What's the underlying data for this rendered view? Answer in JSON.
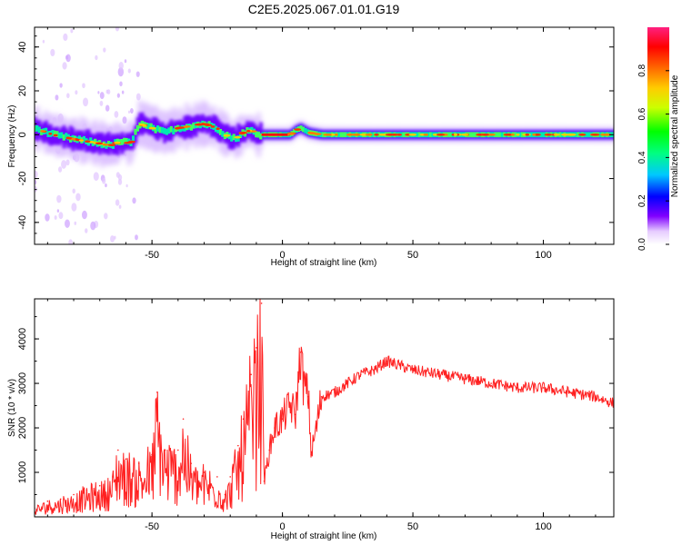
{
  "figure": {
    "title": "C2E5.2025.067.01.01.G19"
  },
  "chart_data": [
    {
      "type": "heatmap",
      "title": "C2E5.2025.067.01.01.G19",
      "xlabel": "Height of straight line (km)",
      "ylabel": "Frequency (Hz)",
      "xlim": [
        -95,
        127
      ],
      "ylim": [
        -50,
        49
      ],
      "xticks": [
        -50,
        0,
        50,
        100
      ],
      "yticks": [
        -40,
        -20,
        0,
        20,
        40
      ],
      "colorbar": {
        "label": "Normalized spectral amplitude",
        "range": [
          0,
          1
        ],
        "ticks": [
          0.0,
          0.2,
          0.4,
          0.6,
          0.8
        ],
        "colormap": [
          "#ffffff",
          "#d9b3ff",
          "#7a00ff",
          "#0000ff",
          "#00ffff",
          "#00ff00",
          "#ffff00",
          "#ff8000",
          "#ff0000",
          "#ff1493"
        ]
      },
      "ridge": {
        "description_points_x": [
          -95,
          -88,
          -80,
          -75,
          -70,
          -66,
          -62,
          -58,
          -55,
          -50,
          -45,
          -40,
          -35,
          -30,
          -25,
          -22,
          -20,
          -18,
          -15,
          -12,
          -10,
          -8,
          -5,
          0,
          3,
          5,
          7,
          10,
          15,
          20,
          30,
          50,
          80,
          127
        ],
        "description_points_y": [
          3,
          0,
          -2,
          -3,
          -4,
          -5,
          -3,
          -4,
          5,
          3,
          1,
          3,
          4,
          5,
          3,
          0,
          -1,
          -2,
          1,
          2,
          0,
          0,
          0,
          0,
          0,
          2,
          3,
          1,
          0,
          0,
          0,
          0,
          0,
          0
        ]
      },
      "grid": false,
      "legend": "colorbar-right"
    },
    {
      "type": "line",
      "xlabel": "Height of straight line (km)",
      "ylabel": "SNR (10 * v/v)",
      "xlim": [
        -95,
        127
      ],
      "ylim": [
        0,
        4900
      ],
      "xticks": [
        -50,
        0,
        50,
        100
      ],
      "yticks": [
        1000,
        2000,
        3000,
        4000
      ],
      "color": "#ff2020",
      "series": [
        {
          "x": [
            -95,
            -90,
            -85,
            -80,
            -75,
            -70,
            -65,
            -63,
            -60,
            -55,
            -50,
            -48,
            -45,
            -40,
            -38,
            -35,
            -30,
            -25,
            -22,
            -20,
            -17,
            -15,
            -12,
            -10,
            -8,
            -7,
            -5,
            -3,
            0,
            3,
            5,
            7,
            8,
            10,
            11,
            13,
            15,
            20,
            25,
            30,
            35,
            40,
            45,
            50,
            60,
            70,
            80,
            90,
            100,
            110,
            120,
            127
          ],
          "y": [
            200,
            350,
            400,
            500,
            600,
            700,
            900,
            1500,
            1300,
            1200,
            1400,
            2800,
            1500,
            1500,
            2200,
            1200,
            1000,
            900,
            500,
            900,
            1600,
            2200,
            3200,
            3800,
            4800,
            800,
            1500,
            2000,
            2200,
            2500,
            2300,
            3700,
            3000,
            2700,
            1400,
            2000,
            2700,
            2800,
            3000,
            3200,
            3300,
            3500,
            3400,
            3300,
            3200,
            3100,
            3000,
            2900,
            2900,
            2800,
            2700,
            2550
          ]
        }
      ],
      "grid": false
    }
  ]
}
